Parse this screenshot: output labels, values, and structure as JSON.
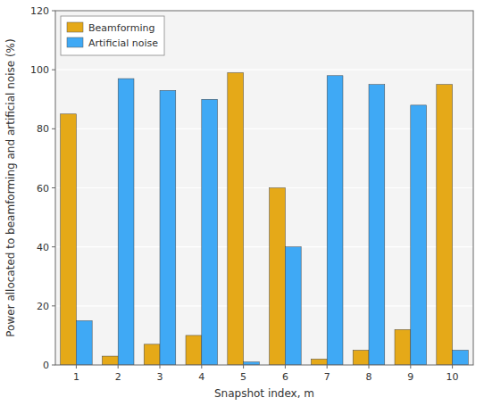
{
  "chart_data": {
    "type": "bar",
    "x_label": "Snapshot index, m",
    "y_label": "Power allocated to beamforming and artificial noise (%)",
    "categories": [
      "1",
      "2",
      "3",
      "4",
      "5",
      "6",
      "7",
      "8",
      "9",
      "10"
    ],
    "series": [
      {
        "name": "Beamforming",
        "color": "#E5A918",
        "values": [
          85,
          3,
          7,
          10,
          99,
          60,
          2,
          5,
          12,
          95
        ]
      },
      {
        "name": "Artificial noise",
        "color": "#3FA9F5",
        "values": [
          15,
          97,
          93,
          90,
          1,
          40,
          98,
          95,
          88,
          5
        ]
      }
    ],
    "ylim": [
      0,
      120
    ],
    "yticks": [
      0,
      20,
      40,
      60,
      80,
      100,
      120
    ],
    "grid": true,
    "legend": "upper left"
  }
}
